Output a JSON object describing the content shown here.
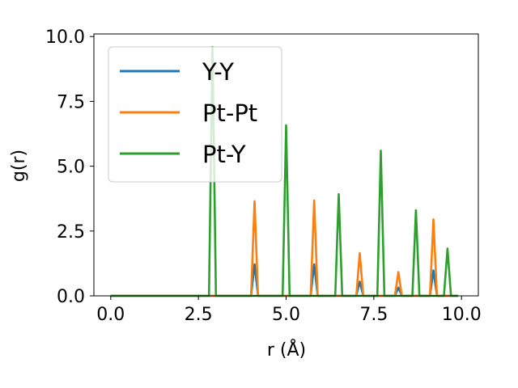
{
  "chart_data": {
    "type": "line",
    "xlabel": "r (Å)",
    "ylabel": "g(r)",
    "xlim": [
      -0.48,
      10.48
    ],
    "ylim": [
      0,
      10.1
    ],
    "xticks": [
      "0.0",
      "2.5",
      "5.0",
      "7.5",
      "10.0"
    ],
    "yticks": [
      "0.0",
      "2.5",
      "5.0",
      "7.5",
      "10.0"
    ],
    "grid": false,
    "legend_position": "upper-left",
    "series": [
      {
        "name": "Y-Y",
        "color": "#1f77b4",
        "x": [
          0,
          4.0,
          4.1,
          4.2,
          5.7,
          5.8,
          5.9,
          7.0,
          7.1,
          7.2,
          8.1,
          8.2,
          8.3,
          9.1,
          9.2,
          9.3,
          9.9
        ],
        "y": [
          0,
          0,
          1.22,
          0,
          0,
          1.22,
          0,
          0,
          0.55,
          0,
          0,
          0.32,
          0,
          0,
          0.98,
          0,
          0
        ]
      },
      {
        "name": "Pt-Pt",
        "color": "#ff7f0e",
        "x": [
          0,
          4.0,
          4.1,
          4.2,
          5.7,
          5.8,
          5.9,
          7.0,
          7.1,
          7.2,
          8.1,
          8.2,
          8.3,
          9.1,
          9.2,
          9.3,
          9.9
        ],
        "y": [
          0,
          0,
          3.65,
          0,
          0,
          3.68,
          0,
          0,
          1.65,
          0,
          0,
          0.92,
          0,
          0,
          2.95,
          0,
          0
        ]
      },
      {
        "name": "Pt-Y",
        "color": "#2ca02c",
        "x": [
          0,
          2.8,
          2.9,
          3.0,
          4.9,
          5.0,
          5.1,
          6.4,
          6.5,
          6.6,
          7.6,
          7.7,
          7.8,
          8.6,
          8.7,
          8.8,
          9.5,
          9.6,
          9.7,
          9.9
        ],
        "y": [
          0,
          0,
          9.6,
          0,
          0,
          6.58,
          0,
          0,
          3.92,
          0,
          0,
          5.6,
          0,
          0,
          3.3,
          0,
          0,
          1.82,
          0,
          0
        ]
      }
    ]
  }
}
